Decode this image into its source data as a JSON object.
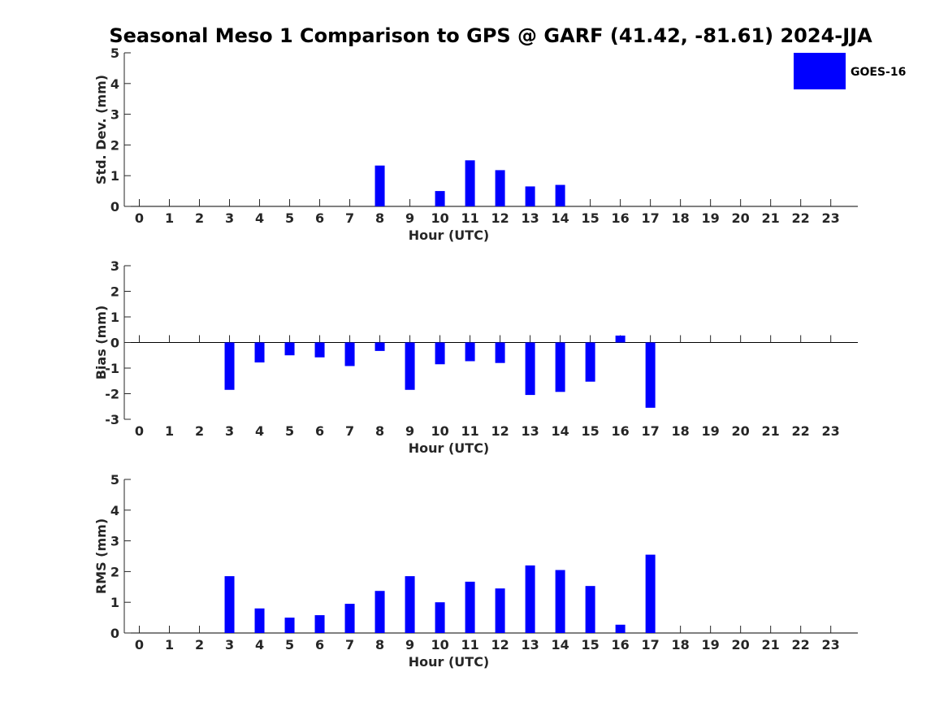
{
  "figure_title": "Seasonal Meso 1 Comparison to GPS @ GARF (41.42, -81.61) 2024-JJA",
  "legend": {
    "label": "GOES-16",
    "color": "#0000ff"
  },
  "colors": {
    "bar": "#0000ff",
    "axis": "#262626",
    "zero_line": "#000000"
  },
  "chart_data": [
    {
      "type": "bar",
      "title": "",
      "xlabel": "Hour (UTC)",
      "ylabel": "Std. Dev. (mm)",
      "ylim": [
        0,
        5
      ],
      "yticks": [
        0,
        1,
        2,
        3,
        4,
        5
      ],
      "grid": false,
      "legend_position": "top-right",
      "categories": [
        "0",
        "1",
        "2",
        "3",
        "4",
        "5",
        "6",
        "7",
        "8",
        "9",
        "10",
        "11",
        "12",
        "13",
        "14",
        "15",
        "16",
        "17",
        "18",
        "19",
        "20",
        "21",
        "22",
        "23"
      ],
      "series": [
        {
          "name": "GOES-16",
          "values": [
            null,
            null,
            null,
            null,
            null,
            null,
            null,
            null,
            1.33,
            null,
            0.5,
            1.5,
            1.18,
            0.65,
            0.7,
            null,
            null,
            null,
            null,
            null,
            null,
            null,
            null,
            null
          ]
        }
      ]
    },
    {
      "type": "bar",
      "title": "",
      "xlabel": "Hour (UTC)",
      "ylabel": "Bias (mm)",
      "ylim": [
        -3,
        3
      ],
      "yticks": [
        -3,
        -2,
        -1,
        0,
        1,
        2,
        3
      ],
      "grid": false,
      "zero_line": true,
      "categories": [
        "0",
        "1",
        "2",
        "3",
        "4",
        "5",
        "6",
        "7",
        "8",
        "9",
        "10",
        "11",
        "12",
        "13",
        "14",
        "15",
        "16",
        "17",
        "18",
        "19",
        "20",
        "21",
        "22",
        "23"
      ],
      "series": [
        {
          "name": "GOES-16",
          "values": [
            null,
            null,
            null,
            -1.85,
            -0.78,
            -0.5,
            -0.58,
            -0.92,
            -0.33,
            -1.85,
            -0.85,
            -0.73,
            -0.8,
            -2.05,
            -1.93,
            -1.53,
            0.27,
            -2.55,
            null,
            null,
            null,
            null,
            null,
            null
          ]
        }
      ]
    },
    {
      "type": "bar",
      "title": "",
      "xlabel": "Hour (UTC)",
      "ylabel": "RMS (mm)",
      "ylim": [
        0,
        5
      ],
      "yticks": [
        0,
        1,
        2,
        3,
        4,
        5
      ],
      "grid": false,
      "categories": [
        "0",
        "1",
        "2",
        "3",
        "4",
        "5",
        "6",
        "7",
        "8",
        "9",
        "10",
        "11",
        "12",
        "13",
        "14",
        "15",
        "16",
        "17",
        "18",
        "19",
        "20",
        "21",
        "22",
        "23"
      ],
      "series": [
        {
          "name": "GOES-16",
          "values": [
            null,
            null,
            null,
            1.85,
            0.8,
            0.5,
            0.58,
            0.95,
            1.37,
            1.85,
            1.0,
            1.67,
            1.45,
            2.2,
            2.05,
            1.53,
            0.27,
            2.55,
            null,
            null,
            null,
            null,
            null,
            null
          ]
        }
      ]
    }
  ]
}
